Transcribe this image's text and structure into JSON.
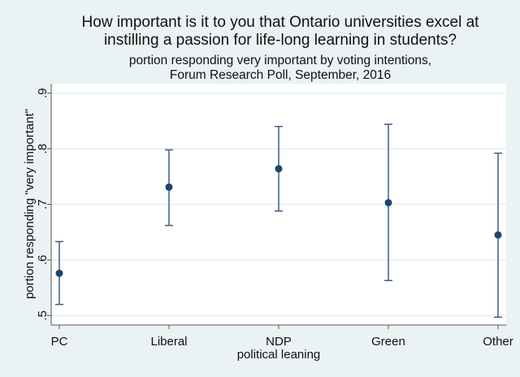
{
  "chart_data": {
    "type": "scatter",
    "title": [
      "How important is it to you that Ontario universities excel at",
      "instilling a passion for life-long learning in students?"
    ],
    "subtitle": [
      "portion responding very important by voting intentions,",
      "Forum Research Poll, September, 2016"
    ],
    "xlabel": "political leaning",
    "ylabel": "portion responding \"very important\"",
    "categories": [
      "PC",
      "Liberal",
      "NDP",
      "Green",
      "Other"
    ],
    "values": [
      0.576,
      0.731,
      0.764,
      0.703,
      0.645
    ],
    "ci_lower": [
      0.52,
      0.662,
      0.688,
      0.563,
      0.497
    ],
    "ci_upper": [
      0.633,
      0.798,
      0.84,
      0.844,
      0.792
    ],
    "yticks": [
      0.5,
      0.6,
      0.7,
      0.8,
      0.9
    ],
    "ytick_labels": [
      ".5",
      ".6",
      ".7",
      ".8",
      ".9"
    ],
    "ylim": [
      0.483,
      0.917
    ],
    "grid": true,
    "colors": {
      "marker": "#1a476f",
      "errorbar": "#3d5e80",
      "background": "#eaf2f3",
      "grid": "#eaf2f3"
    }
  }
}
